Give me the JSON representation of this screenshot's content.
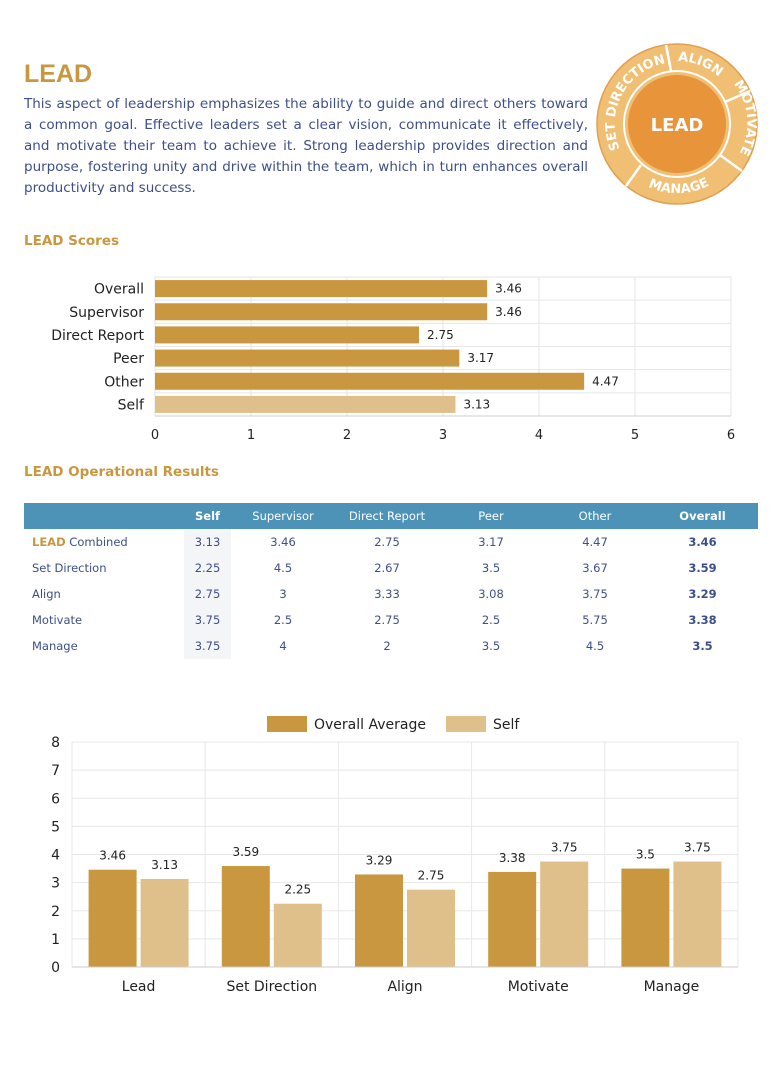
{
  "header": {
    "title": "LEAD",
    "description": "This aspect of leadership emphasizes the ability to guide and direct others toward a common goal. Effective leaders set a clear vision, communicate it effectively, and motivate their team to achieve it. Strong leadership provides direction and purpose, fostering unity and drive within the team, which in turn enhances overall productivity and success."
  },
  "wheel": {
    "center": "LEAD",
    "segments": [
      "SET DIRECTION",
      "ALIGN",
      "MOTIVATE",
      "MANAGE"
    ]
  },
  "sections": {
    "scores_title": "LEAD Scores",
    "results_title": "LEAD Operational Results"
  },
  "results_table": {
    "headers": [
      "",
      "Self",
      "Supervisor",
      "Direct Report",
      "Peer",
      "Other",
      "Overall"
    ],
    "rows": [
      {
        "accent": "LEAD",
        "label": " Combined",
        "values": [
          "3.13",
          "3.46",
          "2.75",
          "3.17",
          "4.47",
          "3.46"
        ]
      },
      {
        "accent": "",
        "label": "Set Direction",
        "values": [
          "2.25",
          "4.5",
          "2.67",
          "3.5",
          "3.67",
          "3.59"
        ]
      },
      {
        "accent": "",
        "label": "Align",
        "values": [
          "2.75",
          "3",
          "3.33",
          "3.08",
          "3.75",
          "3.29"
        ]
      },
      {
        "accent": "",
        "label": "Motivate",
        "values": [
          "3.75",
          "2.5",
          "2.75",
          "2.5",
          "5.75",
          "3.38"
        ]
      },
      {
        "accent": "",
        "label": "Manage",
        "values": [
          "3.75",
          "4",
          "2",
          "3.5",
          "4.5",
          "3.5"
        ]
      }
    ]
  },
  "colors": {
    "gold": "#c9973f",
    "light_gold": "#dfc08a",
    "navy": "#3d4f8a",
    "table_header": "#4c93b7",
    "wheel_outer": "#f0bf73",
    "wheel_inner": "#e8943a"
  },
  "chart_data": [
    {
      "type": "bar",
      "orientation": "horizontal",
      "title": "LEAD Scores",
      "categories": [
        "Overall",
        "Supervisor",
        "Direct Report",
        "Peer",
        "Other",
        "Self"
      ],
      "values": [
        3.46,
        3.46,
        2.75,
        3.17,
        4.47,
        3.13
      ],
      "value_labels": [
        "3.46",
        "3.46",
        "2.75",
        "3.17",
        "4.47",
        "3.13"
      ],
      "highlight_category": "Self",
      "xlim": [
        0,
        6
      ],
      "xticks": [
        "0",
        "1",
        "2",
        "3",
        "4",
        "5",
        "6"
      ],
      "grid": true
    },
    {
      "type": "bar",
      "orientation": "vertical",
      "categories": [
        "Lead",
        "Set Direction",
        "Align",
        "Motivate",
        "Manage"
      ],
      "series": [
        {
          "name": "Overall Average",
          "values": [
            3.46,
            3.59,
            3.29,
            3.38,
            3.5
          ],
          "labels": [
            "3.46",
            "3.59",
            "3.29",
            "3.38",
            "3.5"
          ]
        },
        {
          "name": "Self",
          "values": [
            3.13,
            2.25,
            2.75,
            3.75,
            3.75
          ],
          "labels": [
            "3.13",
            "2.25",
            "2.75",
            "3.75",
            "3.75"
          ]
        }
      ],
      "ylim": [
        0,
        8
      ],
      "yticks": [
        "0",
        "1",
        "2",
        "3",
        "4",
        "5",
        "6",
        "7",
        "8"
      ],
      "legend": "top-center",
      "grid": true
    }
  ]
}
